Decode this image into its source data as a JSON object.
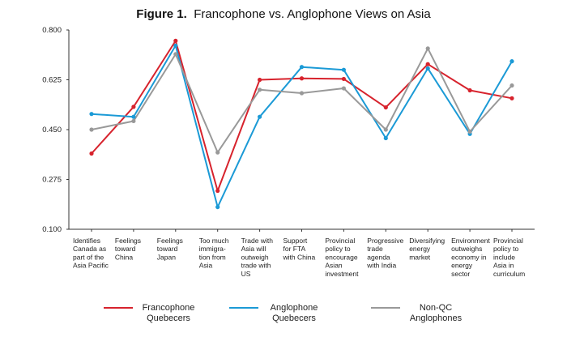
{
  "chart_data": {
    "type": "line",
    "title_prefix": "Figure 1.",
    "title": "Francophone vs. Anglophone Views on Asia",
    "xlabel": "",
    "ylabel": "",
    "ylim": [
      0.1,
      0.8
    ],
    "yticks": [
      "0.800",
      "0.625",
      "0.450",
      "0.275",
      "0.100"
    ],
    "ytick_values": [
      0.8,
      0.625,
      0.45,
      0.275,
      0.1
    ],
    "grid": false,
    "legend_position": "bottom",
    "categories": [
      [
        "Identifies",
        "Canada as",
        "part of the",
        "Asia Pacific"
      ],
      [
        "Feelings",
        "toward",
        "China"
      ],
      [
        "Feelings",
        "toward",
        "Japan"
      ],
      [
        "Too much",
        "immigra-",
        "tion from",
        "Asia"
      ],
      [
        "Trade with",
        "Asia will",
        "outweigh",
        "trade with",
        "US"
      ],
      [
        "Support",
        "for FTA",
        "with China"
      ],
      [
        "Provincial",
        "policy to",
        "encourage",
        "Asian",
        "investment"
      ],
      [
        "Progressive",
        "trade",
        "agenda",
        "with India"
      ],
      [
        "Diversifying",
        "energy",
        "market"
      ],
      [
        "Environment",
        "outweighs",
        "economy in",
        "energy",
        "sector"
      ],
      [
        "Provincial",
        "policy to",
        "include",
        "Asia in",
        "curriculum"
      ]
    ],
    "series": [
      {
        "name": [
          "Francophone",
          "Quebecers"
        ],
        "color": "#d7232d",
        "values": [
          0.366,
          0.53,
          0.762,
          0.235,
          0.625,
          0.63,
          0.628,
          0.528,
          0.68,
          0.588,
          0.56
        ]
      },
      {
        "name": [
          "Anglophone",
          "Quebecers"
        ],
        "color": "#1b9ad6",
        "values": [
          0.505,
          0.495,
          0.745,
          0.178,
          0.495,
          0.67,
          0.66,
          0.42,
          0.665,
          0.435,
          0.69
        ]
      },
      {
        "name": [
          "Non-QC",
          "Anglophones"
        ],
        "color": "#999999",
        "values": [
          0.45,
          0.48,
          0.715,
          0.37,
          0.59,
          0.578,
          0.595,
          0.45,
          0.735,
          0.443,
          0.605
        ]
      }
    ]
  }
}
